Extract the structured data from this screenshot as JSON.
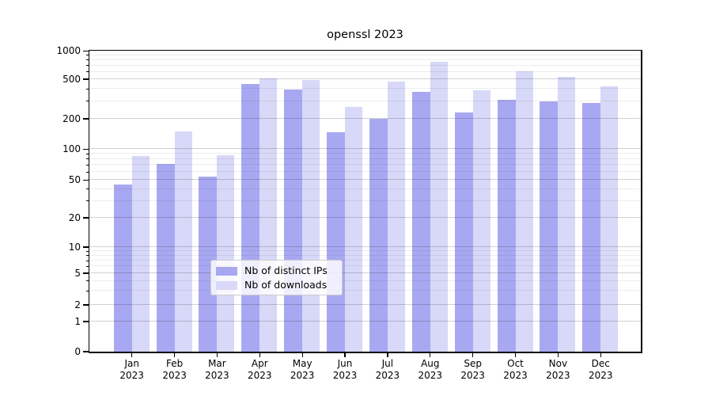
{
  "title": "openssl 2023",
  "chart_data": {
    "type": "bar",
    "title": "openssl 2023",
    "categories": [
      "Jan 2023",
      "Feb 2023",
      "Mar 2023",
      "Apr 2023",
      "May 2023",
      "Jun 2023",
      "Jul 2023",
      "Aug 2023",
      "Sep 2023",
      "Oct 2023",
      "Nov 2023",
      "Dec 2023"
    ],
    "series": [
      {
        "name": "Nb of distinct IPs",
        "color": "#a8a8f2",
        "values": [
          45,
          72,
          54,
          445,
          395,
          147,
          201,
          370,
          232,
          308,
          298,
          290
        ]
      },
      {
        "name": "Nb of downloads",
        "color": "#d8d8f8",
        "values": [
          86,
          150,
          87,
          510,
          495,
          262,
          470,
          770,
          385,
          610,
          532,
          425
        ]
      }
    ],
    "xlabel": "",
    "ylabel": "",
    "ylim": [
      0,
      1000
    ],
    "yscale": "symlog",
    "y_major_ticks": [
      0,
      1,
      2,
      5,
      10,
      20,
      50,
      100,
      200,
      500,
      1000
    ],
    "y_minor_ticks": [
      3,
      4,
      6,
      7,
      8,
      9,
      30,
      40,
      60,
      70,
      80,
      90,
      300,
      400,
      600,
      700,
      800,
      900
    ],
    "grid": "on",
    "grid_over_bars": true,
    "legend_position": "lower center"
  },
  "colors": {
    "spine": "#000000",
    "grid_major": "#cecece",
    "grid_minor": "#ececec",
    "background": "#ffffff"
  }
}
